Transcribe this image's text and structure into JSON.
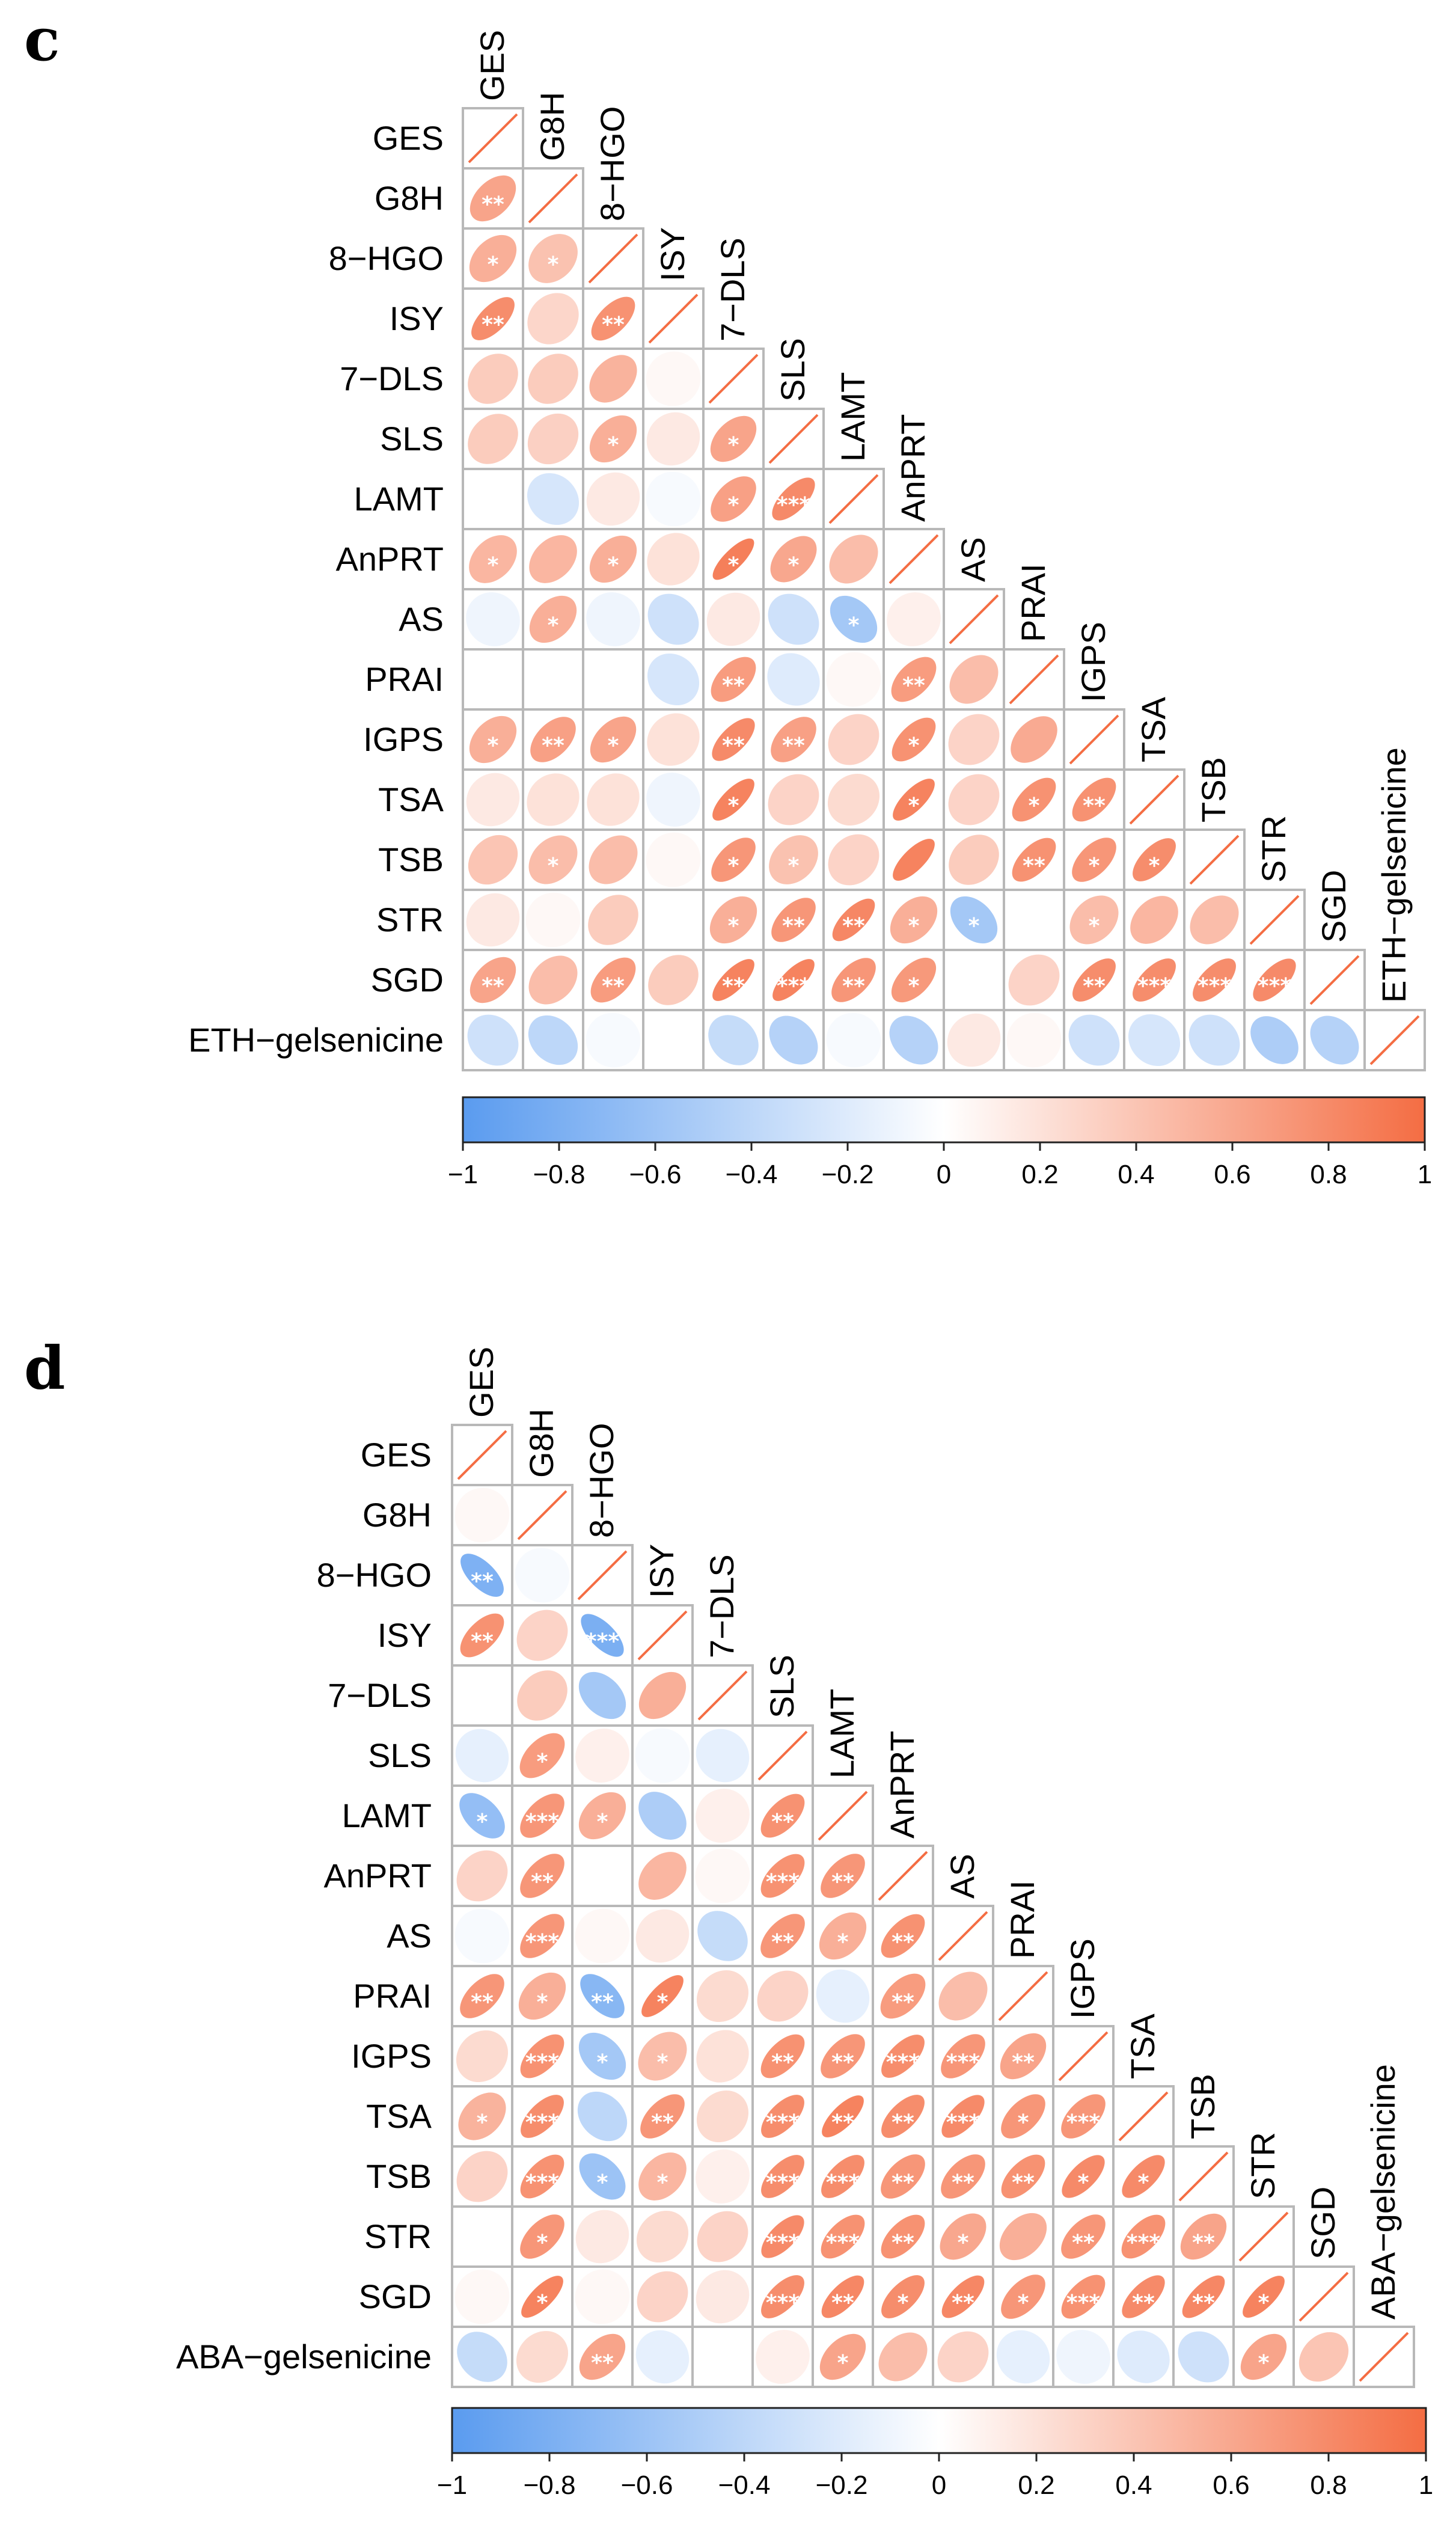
{
  "chart_data": [
    {
      "type": "heatmap",
      "panel_label": "c",
      "variables": [
        "GES",
        "G8H",
        "8−HGO",
        "ISY",
        "7−DLS",
        "SLS",
        "LAMT",
        "AnPRT",
        "AS",
        "PRAI",
        "IGPS",
        "TSA",
        "TSB",
        "STR",
        "SGD",
        "ETH−gelsenicine"
      ],
      "correlations": [
        [
          1
        ],
        [
          0.62,
          1
        ],
        [
          0.55,
          0.42,
          1
        ],
        [
          0.78,
          0.28,
          0.75,
          1
        ],
        [
          0.35,
          0.35,
          0.52,
          0.05,
          1
        ],
        [
          0.35,
          0.32,
          0.55,
          0.15,
          0.62,
          1
        ],
        [
          0.0,
          -0.25,
          0.15,
          -0.05,
          0.65,
          0.8,
          1
        ],
        [
          0.5,
          0.5,
          0.55,
          0.2,
          0.88,
          0.6,
          0.45,
          1
        ],
        [
          -0.1,
          0.55,
          -0.1,
          -0.3,
          0.15,
          -0.3,
          -0.55,
          0.1,
          1
        ],
        [
          0.0,
          0.0,
          0.0,
          -0.25,
          0.68,
          -0.2,
          0.05,
          0.68,
          0.45,
          1
        ],
        [
          0.55,
          0.65,
          0.62,
          0.2,
          0.8,
          0.65,
          0.3,
          0.75,
          0.3,
          0.58,
          1
        ],
        [
          0.15,
          0.2,
          0.2,
          -0.1,
          0.85,
          0.3,
          0.25,
          0.85,
          0.3,
          0.75,
          0.75,
          1
        ],
        [
          0.4,
          0.45,
          0.45,
          0.05,
          0.72,
          0.42,
          0.3,
          0.85,
          0.35,
          0.75,
          0.72,
          0.78,
          1
        ],
        [
          0.15,
          0.05,
          0.35,
          0.0,
          0.55,
          0.72,
          0.82,
          0.55,
          -0.55,
          0.0,
          0.45,
          0.5,
          0.45,
          1
        ],
        [
          0.62,
          0.45,
          0.68,
          0.35,
          0.85,
          0.85,
          0.72,
          0.7,
          0.0,
          0.3,
          0.78,
          0.78,
          0.78,
          0.8,
          1
        ],
        [
          -0.3,
          -0.4,
          -0.05,
          0.0,
          -0.35,
          -0.45,
          -0.05,
          -0.45,
          0.15,
          0.05,
          -0.3,
          -0.25,
          -0.3,
          -0.5,
          -0.45,
          1
        ]
      ],
      "significance": [
        [
          ""
        ],
        [
          "**",
          ""
        ],
        [
          "*",
          "*",
          ""
        ],
        [
          "**",
          "",
          "**",
          ""
        ],
        [
          "",
          "",
          "",
          "",
          ""
        ],
        [
          "",
          "",
          "*",
          "",
          "*",
          ""
        ],
        [
          "",
          "",
          "",
          "",
          "*",
          "***",
          ""
        ],
        [
          "*",
          "",
          "*",
          "",
          "*",
          "*",
          "",
          ""
        ],
        [
          "",
          "*",
          "",
          "",
          "",
          "",
          "*",
          "",
          ""
        ],
        [
          "",
          "",
          "",
          "",
          "**",
          "",
          "",
          "**",
          "",
          ""
        ],
        [
          "*",
          "**",
          "*",
          "",
          "**",
          "**",
          "",
          "*",
          "",
          "",
          ""
        ],
        [
          "",
          "",
          "",
          "",
          "*",
          "",
          "",
          "*",
          "",
          "*",
          "**",
          ""
        ],
        [
          "",
          "*",
          "",
          "",
          "*",
          "*",
          "",
          "",
          "",
          "**",
          "*",
          "*",
          ""
        ],
        [
          "",
          "",
          "",
          "",
          "*",
          "**",
          "**",
          "*",
          "*",
          "",
          "*",
          "",
          "",
          ""
        ],
        [
          "**",
          "",
          "**",
          "",
          "**",
          "***",
          "**",
          "*",
          "",
          "",
          "**",
          "***",
          "***",
          "***",
          ""
        ],
        [
          "",
          "",
          "",
          "",
          "",
          "",
          "",
          "",
          "",
          "",
          "",
          "",
          "",
          "",
          "",
          ""
        ]
      ],
      "colorbar": {
        "ticks": [
          "−1",
          "−0.8",
          "−0.6",
          "−0.4",
          "−0.2",
          "0",
          "0.2",
          "0.4",
          "0.6",
          "0.8",
          "1"
        ],
        "min": -1,
        "max": 1,
        "negative_color": "#5a9bef",
        "zero_color": "#ffffff",
        "positive_color": "#f46d43"
      }
    },
    {
      "type": "heatmap",
      "panel_label": "d",
      "variables": [
        "GES",
        "G8H",
        "8−HGO",
        "ISY",
        "7−DLS",
        "SLS",
        "LAMT",
        "AnPRT",
        "AS",
        "PRAI",
        "IGPS",
        "TSA",
        "TSB",
        "STR",
        "SGD",
        "ABA−gelsenicine"
      ],
      "correlations": [
        [
          1
        ],
        [
          0.05,
          1
        ],
        [
          -0.78,
          -0.05,
          1
        ],
        [
          0.75,
          0.3,
          -0.8,
          1
        ],
        [
          0.0,
          0.35,
          -0.55,
          0.55,
          1
        ],
        [
          -0.15,
          0.68,
          0.1,
          -0.05,
          -0.15,
          1
        ],
        [
          -0.65,
          0.72,
          0.55,
          -0.5,
          0.1,
          0.75,
          1
        ],
        [
          0.3,
          0.72,
          0.0,
          0.5,
          0.05,
          0.75,
          0.72,
          1
        ],
        [
          -0.05,
          0.72,
          0.05,
          0.15,
          -0.35,
          0.72,
          0.55,
          0.75,
          1
        ],
        [
          0.72,
          0.55,
          -0.72,
          0.85,
          0.25,
          0.3,
          -0.15,
          0.68,
          0.45,
          1
        ],
        [
          0.25,
          0.75,
          -0.55,
          0.45,
          0.2,
          0.75,
          0.72,
          0.78,
          0.72,
          0.62,
          1
        ],
        [
          0.52,
          0.78,
          -0.4,
          0.72,
          0.25,
          0.78,
          0.85,
          0.78,
          0.8,
          0.72,
          0.72,
          1
        ],
        [
          0.3,
          0.75,
          -0.6,
          0.5,
          0.1,
          0.78,
          0.78,
          0.72,
          0.72,
          0.75,
          0.8,
          0.8,
          1
        ],
        [
          0.0,
          0.72,
          0.15,
          0.25,
          0.3,
          0.8,
          0.75,
          0.75,
          0.6,
          0.55,
          0.72,
          0.75,
          0.62,
          1
        ],
        [
          0.05,
          0.85,
          0.05,
          0.3,
          0.15,
          0.78,
          0.82,
          0.78,
          0.82,
          0.72,
          0.75,
          0.8,
          0.82,
          0.85,
          1
        ],
        [
          -0.35,
          0.25,
          0.62,
          -0.15,
          0.0,
          0.1,
          0.62,
          0.45,
          0.3,
          -0.15,
          -0.1,
          -0.2,
          -0.3,
          0.62,
          0.4,
          1
        ]
      ],
      "significance": [
        [
          ""
        ],
        [
          "",
          ""
        ],
        [
          "**",
          "",
          ""
        ],
        [
          "**",
          "",
          "***",
          ""
        ],
        [
          "",
          "",
          "",
          "",
          ""
        ],
        [
          "",
          "*",
          "",
          "",
          "",
          ""
        ],
        [
          "*",
          "***",
          "*",
          "",
          "",
          "**",
          ""
        ],
        [
          "",
          "**",
          "",
          "",
          "",
          "***",
          "**",
          ""
        ],
        [
          "",
          "***",
          "",
          "",
          "",
          "**",
          "*",
          "**",
          ""
        ],
        [
          "**",
          "*",
          "**",
          "*",
          "",
          "",
          "",
          "**",
          "",
          ""
        ],
        [
          "",
          "***",
          "*",
          "*",
          "",
          "**",
          "**",
          "***",
          "***",
          "**",
          ""
        ],
        [
          "*",
          "***",
          "",
          "**",
          "",
          "***",
          "**",
          "**",
          "***",
          "*",
          "***",
          ""
        ],
        [
          "",
          "***",
          "*",
          "*",
          "",
          "***",
          "***",
          "**",
          "**",
          "**",
          "*",
          "*",
          ""
        ],
        [
          "",
          "*",
          "",
          "",
          "",
          "***",
          "***",
          "**",
          "*",
          "",
          "**",
          "***",
          "**",
          ""
        ],
        [
          "",
          "*",
          "",
          "",
          "",
          "***",
          "**",
          "*",
          "**",
          "*",
          "***",
          "**",
          "**",
          "*",
          ""
        ],
        [
          "",
          "",
          "**",
          "",
          "",
          "",
          "*",
          "",
          "",
          "",
          "",
          "",
          "",
          "*",
          "",
          ""
        ]
      ],
      "colorbar": {
        "ticks": [
          "−1",
          "−0.8",
          "−0.6",
          "−0.4",
          "−0.2",
          "0",
          "0.2",
          "0.4",
          "0.6",
          "0.8",
          "1"
        ],
        "min": -1,
        "max": 1,
        "negative_color": "#5a9bef",
        "zero_color": "#ffffff",
        "positive_color": "#f46d43"
      }
    }
  ]
}
